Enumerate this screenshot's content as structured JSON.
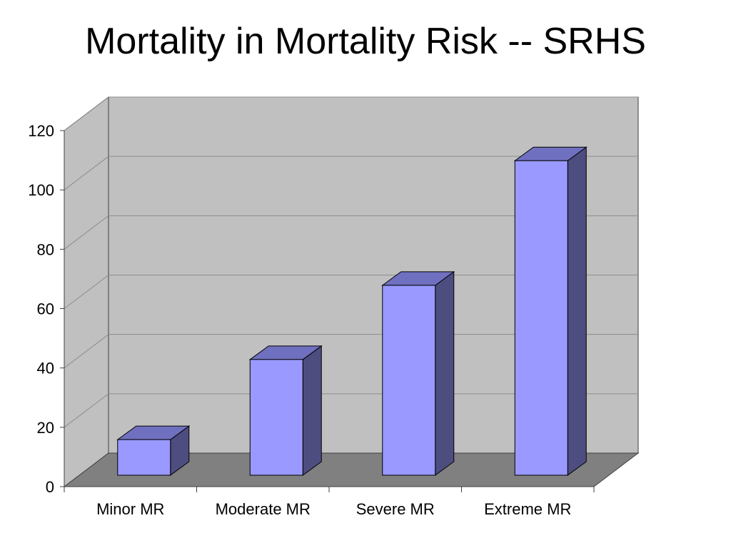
{
  "title": "Mortality in Mortality Risk -- SRHS",
  "colors": {
    "bar_front": "#9999ff",
    "bar_top": "#7070c0",
    "bar_side": "#4d4d80",
    "back_wall": "#c0c0c0",
    "side_wall": "#c0c0c0",
    "floor": "#808080",
    "gridline": "#8c8c8c"
  },
  "chart_data": {
    "type": "bar",
    "style": "3d",
    "categories": [
      "Minor MR",
      "Moderate MR",
      "Severe MR",
      "Extreme MR"
    ],
    "values": [
      12,
      39,
      64,
      106
    ],
    "title": "Mortality in Mortality Risk -- SRHS",
    "xlabel": "",
    "ylabel": "",
    "ylim": [
      0,
      120
    ],
    "yticks": [
      0,
      20,
      40,
      60,
      80,
      100,
      120
    ],
    "grid": true,
    "legend": "none"
  }
}
